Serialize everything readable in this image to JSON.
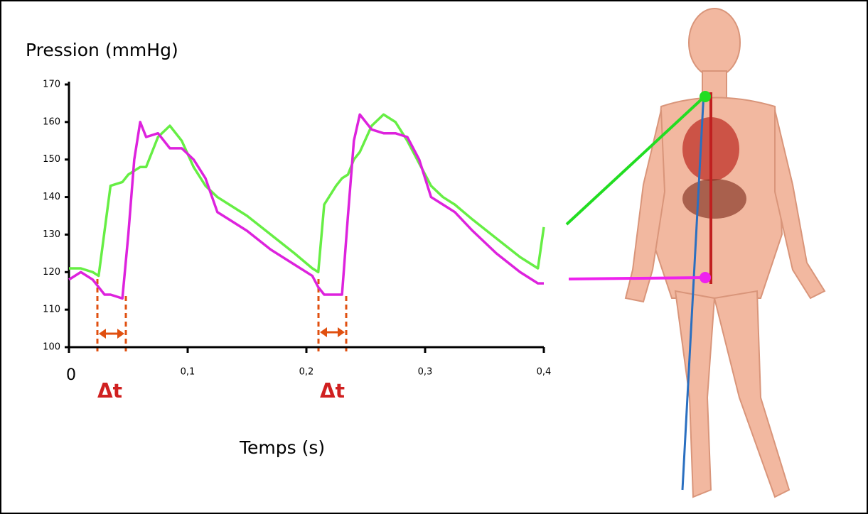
{
  "chart_data": {
    "type": "line",
    "y_label": "Pression (mmHg)",
    "x_label": "Temps (s)",
    "annotations": [
      "Δt",
      "Δt"
    ],
    "x": [
      0,
      0.01,
      0.02,
      0.025,
      0.03,
      0.035,
      0.045,
      0.05,
      0.055,
      0.06,
      0.065,
      0.075,
      0.085,
      0.095,
      0.105,
      0.115,
      0.125,
      0.135,
      0.15,
      0.17,
      0.19,
      0.205,
      0.21,
      0.215,
      0.225,
      0.23,
      0.235,
      0.24,
      0.245,
      0.255,
      0.265,
      0.275,
      0.285,
      0.295,
      0.305,
      0.315,
      0.325,
      0.34,
      0.36,
      0.38,
      0.395,
      0.4
    ],
    "series": [
      {
        "color": "#66ee44",
        "values": [
          121,
          121,
          120,
          119,
          131,
          143,
          144,
          146,
          147,
          148,
          148,
          156,
          159,
          155,
          148,
          143,
          140,
          138,
          135,
          130,
          125,
          121,
          120,
          138,
          143,
          145,
          146,
          150,
          152,
          159,
          162,
          160,
          155,
          149,
          143,
          140,
          138,
          134,
          129,
          124,
          121,
          132
        ]
      },
      {
        "color": "#dd22dd",
        "values": [
          118,
          120,
          118,
          116,
          114,
          114,
          113,
          130,
          150,
          160,
          156,
          157,
          153,
          153,
          150,
          145,
          136,
          134,
          131,
          126,
          122,
          119,
          116,
          114,
          114,
          114,
          135,
          155,
          162,
          158,
          157,
          157,
          156,
          150,
          140,
          138,
          136,
          131,
          125,
          120,
          117,
          117
        ]
      }
    ],
    "xlim": [
      0,
      0.4
    ],
    "ylim": [
      100,
      170
    ],
    "xticks": [
      0,
      {
        "value": 0.1,
        "label": "0,1"
      },
      {
        "value": 0.2,
        "label": "0,2"
      },
      {
        "value": 0.3,
        "label": "0,3"
      },
      {
        "value": 0.4,
        "label": "0,4"
      }
    ],
    "yticks": [
      100,
      110,
      120,
      130,
      140,
      150,
      160,
      170
    ]
  }
}
